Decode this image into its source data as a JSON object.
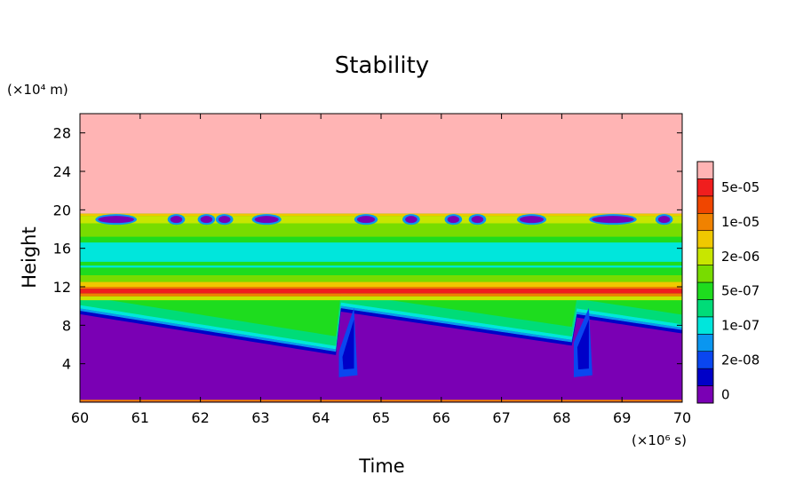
{
  "chart_data": {
    "type": "heatmap",
    "title": "Stability",
    "xlabel": "Time",
    "ylabel": "Height",
    "x_unit_label": "(×10⁶ s)",
    "y_unit_label": "(×10⁴ m)",
    "x_range": [
      60,
      70
    ],
    "y_range": [
      0,
      30
    ],
    "x_ticks": [
      60,
      61,
      62,
      63,
      64,
      65,
      66,
      67,
      68,
      69,
      70
    ],
    "y_ticks": [
      4,
      8,
      12,
      16,
      20,
      24,
      28
    ],
    "colorbar": {
      "levels": [
        {
          "label": "0",
          "color": "#7a00b4"
        },
        {
          "label": "",
          "color": "#0000c8"
        },
        {
          "label": "2e-08",
          "color": "#0a46f0"
        },
        {
          "label": "",
          "color": "#0a96f0"
        },
        {
          "label": "1e-07",
          "color": "#00e6dc"
        },
        {
          "label": "",
          "color": "#00dc78"
        },
        {
          "label": "5e-07",
          "color": "#1edc1e"
        },
        {
          "label": "",
          "color": "#78dc00"
        },
        {
          "label": "2e-06",
          "color": "#c8e600"
        },
        {
          "label": "",
          "color": "#f0c800"
        },
        {
          "label": "1e-05",
          "color": "#f08200"
        },
        {
          "label": "",
          "color": "#f04600"
        },
        {
          "label": "5e-05",
          "color": "#f01e1e"
        },
        {
          "label": "",
          "color": "#ffb4b4"
        }
      ]
    },
    "regions": {
      "upper_layer_color": "#ffb4b4",
      "tropopause_height": 19.6,
      "stable_band_height": [
        11.0,
        12.0
      ],
      "surface_color": "#7a00b4",
      "cycle_resets": [
        64.3,
        68.2
      ]
    }
  }
}
